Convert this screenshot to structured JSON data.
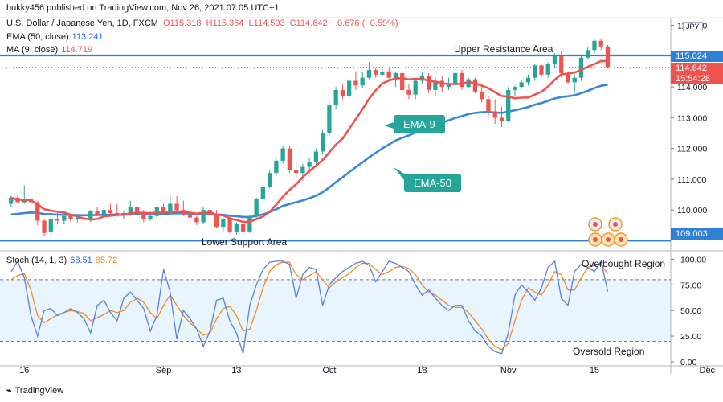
{
  "header": {
    "published": "bukky456 published on TradingView.com, Nov 26, 2021 07:05 UTC+1",
    "symbol": "U.S. Dollar / Japanese Yen, 1D, FXCM",
    "ohlc": {
      "o": "O115.318",
      "h": "H115.364",
      "l": "L114.593",
      "c": "C114.642",
      "chg": "−0.676 (−0.59%)"
    },
    "ema_label": "EMA (50, close)",
    "ema_value": "113.241",
    "ma_label": "MA (9, close)",
    "ma_value": "114.719",
    "stoch_label": "Stoch (14, 1, 3)",
    "stoch_k": "68.51",
    "stoch_d": "85.72",
    "currency": "JPY"
  },
  "annotations": {
    "upper": "Upper Resistance Area",
    "lower": "Lower Support Area",
    "ema9": "EMA-9",
    "ema50": "EMA-50",
    "overbought": "Overbought Region",
    "oversold": "Oversold Region"
  },
  "price_tags": {
    "resistance": "115.024",
    "close": "114.642",
    "timer": "15:54:28",
    "support": "109.003"
  },
  "footer": {
    "brand": "TradingView"
  },
  "colors": {
    "up": "#26a69a",
    "down": "#ef5350",
    "ema50": "#3a86d8",
    "ma9": "#ef5350",
    "level": "#2f80d6",
    "stochK": "#5b7fe0",
    "stochD": "#f08a24"
  },
  "chart_data": [
    {
      "type": "candlestick",
      "price_axis": {
        "ticks": [
          110,
          111,
          112,
          113,
          114,
          115,
          116
        ],
        "labels": [
          "110.000",
          "111.000",
          "112.000",
          "113.000",
          "114.000",
          "115.000",
          "116.000"
        ],
        "ylim": [
          108.8,
          116.2
        ]
      },
      "x_ticks": [
        "16",
        "Sep",
        "13",
        "Oct",
        "18",
        "Nov",
        "15",
        "Dec"
      ],
      "x_tick_index": [
        2,
        23,
        34,
        48,
        62,
        75,
        88,
        105
      ],
      "levels": [
        115.024,
        109.003
      ],
      "candles": [
        [
          110.2,
          110.45,
          110.1,
          110.4
        ],
        [
          110.4,
          110.5,
          110.2,
          110.25
        ],
        [
          110.25,
          110.8,
          110.2,
          110.35
        ],
        [
          110.35,
          110.4,
          110.0,
          110.25
        ],
        [
          110.25,
          110.3,
          109.5,
          109.65
        ],
        [
          109.65,
          109.7,
          109.15,
          109.25
        ],
        [
          109.3,
          109.75,
          109.2,
          109.7
        ],
        [
          109.7,
          109.9,
          109.55,
          109.65
        ],
        [
          109.65,
          109.95,
          109.55,
          109.8
        ],
        [
          109.8,
          109.85,
          109.6,
          109.7
        ],
        [
          109.7,
          109.8,
          109.6,
          109.75
        ],
        [
          109.75,
          109.8,
          109.6,
          109.7
        ],
        [
          109.7,
          110.0,
          109.6,
          109.95
        ],
        [
          109.95,
          110.1,
          109.8,
          109.85
        ],
        [
          109.85,
          110.05,
          109.7,
          110.0
        ],
        [
          110.0,
          110.2,
          109.8,
          109.9
        ],
        [
          109.9,
          110.2,
          109.85,
          109.85
        ],
        [
          109.85,
          109.95,
          109.7,
          109.9
        ],
        [
          109.9,
          110.3,
          109.8,
          110.1
        ],
        [
          110.1,
          110.2,
          109.75,
          109.9
        ],
        [
          109.9,
          110.0,
          109.6,
          109.7
        ],
        [
          109.7,
          109.95,
          109.65,
          109.8
        ],
        [
          109.8,
          110.2,
          109.7,
          110.1
        ],
        [
          110.1,
          110.2,
          109.85,
          109.9
        ],
        [
          109.9,
          110.5,
          109.85,
          110.2
        ],
        [
          110.2,
          110.45,
          109.9,
          110.0
        ],
        [
          110.0,
          110.3,
          109.8,
          109.85
        ],
        [
          109.85,
          110.0,
          109.6,
          109.75
        ],
        [
          109.75,
          109.8,
          109.5,
          109.6
        ],
        [
          109.6,
          110.1,
          109.55,
          110.0
        ],
        [
          110.0,
          110.1,
          109.8,
          109.85
        ],
        [
          109.85,
          110.0,
          109.4,
          109.45
        ],
        [
          109.45,
          109.75,
          109.3,
          109.7
        ],
        [
          109.7,
          109.8,
          109.25,
          109.3
        ],
        [
          109.3,
          109.6,
          109.2,
          109.55
        ],
        [
          109.55,
          109.9,
          109.2,
          109.3
        ],
        [
          109.3,
          109.85,
          109.25,
          109.8
        ],
        [
          109.8,
          110.4,
          109.7,
          110.35
        ],
        [
          110.35,
          110.8,
          110.3,
          110.75
        ],
        [
          110.75,
          111.3,
          110.7,
          111.2
        ],
        [
          111.2,
          111.7,
          111.1,
          111.6
        ],
        [
          111.6,
          112.1,
          111.5,
          112.0
        ],
        [
          112.0,
          112.1,
          111.2,
          111.3
        ],
        [
          111.3,
          111.6,
          111.0,
          111.2
        ],
        [
          111.2,
          111.5,
          110.95,
          111.4
        ],
        [
          111.4,
          111.7,
          111.2,
          111.55
        ],
        [
          111.55,
          112.0,
          111.4,
          111.9
        ],
        [
          111.9,
          112.6,
          111.8,
          112.5
        ],
        [
          112.5,
          113.5,
          112.4,
          113.4
        ],
        [
          113.4,
          114.0,
          113.3,
          113.9
        ],
        [
          113.9,
          114.1,
          113.6,
          113.7
        ],
        [
          113.7,
          114.3,
          113.6,
          114.2
        ],
        [
          114.2,
          114.5,
          113.9,
          114.05
        ],
        [
          114.05,
          114.5,
          113.95,
          114.3
        ],
        [
          114.3,
          114.8,
          114.25,
          114.55
        ],
        [
          114.55,
          114.6,
          114.3,
          114.4
        ],
        [
          114.4,
          114.65,
          114.35,
          114.5
        ],
        [
          114.5,
          114.6,
          114.2,
          114.3
        ],
        [
          114.3,
          114.5,
          114.0,
          114.45
        ],
        [
          114.45,
          114.5,
          113.85,
          113.9
        ],
        [
          113.9,
          114.1,
          113.6,
          113.75
        ],
        [
          113.75,
          114.25,
          113.6,
          114.2
        ],
        [
          114.2,
          114.5,
          114.1,
          114.35
        ],
        [
          114.35,
          114.45,
          113.8,
          113.9
        ],
        [
          113.9,
          114.3,
          113.7,
          114.2
        ],
        [
          114.2,
          114.35,
          113.85,
          114.0
        ],
        [
          114.0,
          114.3,
          113.9,
          114.1
        ],
        [
          114.1,
          114.5,
          114.0,
          114.45
        ],
        [
          114.45,
          114.55,
          113.9,
          114.0
        ],
        [
          114.0,
          114.3,
          113.95,
          114.25
        ],
        [
          114.25,
          114.3,
          113.8,
          113.85
        ],
        [
          113.85,
          114.0,
          113.5,
          113.6
        ],
        [
          113.6,
          113.7,
          113.05,
          113.2
        ],
        [
          113.2,
          113.6,
          112.8,
          113.0
        ],
        [
          113.0,
          113.35,
          112.7,
          112.9
        ],
        [
          112.9,
          114.0,
          112.85,
          113.9
        ],
        [
          113.9,
          114.05,
          113.7,
          114.0
        ],
        [
          114.0,
          114.2,
          113.95,
          114.15
        ],
        [
          114.15,
          114.4,
          114.05,
          114.3
        ],
        [
          114.3,
          114.75,
          114.2,
          114.7
        ],
        [
          114.7,
          114.75,
          114.3,
          114.4
        ],
        [
          114.4,
          114.8,
          114.3,
          114.75
        ],
        [
          114.75,
          115.1,
          114.6,
          115.0
        ],
        [
          115.0,
          115.15,
          114.3,
          114.45
        ],
        [
          114.45,
          114.5,
          114.1,
          114.15
        ],
        [
          114.15,
          114.4,
          113.8,
          114.3
        ],
        [
          114.3,
          115.0,
          114.2,
          114.95
        ],
        [
          114.95,
          115.3,
          114.9,
          115.2
        ],
        [
          115.2,
          115.55,
          115.1,
          115.5
        ],
        [
          115.5,
          115.55,
          115.2,
          115.32
        ],
        [
          115.318,
          115.364,
          114.593,
          114.642
        ]
      ]
    },
    {
      "type": "line",
      "name": "Stoch (14, 1, 3)",
      "ylim": [
        0,
        105
      ],
      "ticks": [
        0,
        25,
        50,
        75,
        100
      ],
      "tick_labels": [
        "0.00",
        "25.00",
        "50.00",
        "75.00",
        "100.00"
      ],
      "overbought": 80,
      "oversold": 20,
      "series": [
        {
          "name": "K",
          "values": [
            88,
            98,
            82,
            45,
            25,
            50,
            52,
            45,
            48,
            52,
            48,
            42,
            28,
            55,
            60,
            48,
            40,
            62,
            68,
            60,
            52,
            30,
            45,
            90,
            68,
            22,
            50,
            42,
            32,
            15,
            30,
            60,
            62,
            40,
            28,
            8,
            55,
            75,
            90,
            97,
            98,
            98,
            95,
            62,
            85,
            92,
            90,
            55,
            75,
            82,
            88,
            92,
            96,
            98,
            94,
            78,
            88,
            98,
            96,
            92,
            88,
            75,
            65,
            70,
            62,
            55,
            50,
            55,
            55,
            40,
            30,
            25,
            15,
            10,
            8,
            28,
            65,
            75,
            68,
            60,
            72,
            92,
            98,
            62,
            55,
            88,
            95,
            92,
            88,
            98,
            68.51
          ]
        },
        {
          "name": "D",
          "values": [
            80,
            84,
            86,
            70,
            45,
            38,
            42,
            46,
            48,
            50,
            49,
            47,
            40,
            43,
            46,
            50,
            48,
            50,
            58,
            62,
            58,
            48,
            42,
            55,
            65,
            55,
            45,
            38,
            32,
            26,
            28,
            42,
            52,
            54,
            45,
            30,
            32,
            50,
            72,
            88,
            95,
            97,
            97,
            85,
            80,
            84,
            88,
            80,
            72,
            78,
            82,
            86,
            92,
            96,
            96,
            90,
            85,
            88,
            92,
            93,
            91,
            85,
            75,
            68,
            65,
            60,
            55,
            53,
            53,
            48,
            40,
            32,
            22,
            15,
            12,
            18,
            40,
            60,
            72,
            68,
            65,
            75,
            88,
            85,
            70,
            70,
            82,
            92,
            94,
            95,
            85.72
          ]
        }
      ]
    }
  ]
}
